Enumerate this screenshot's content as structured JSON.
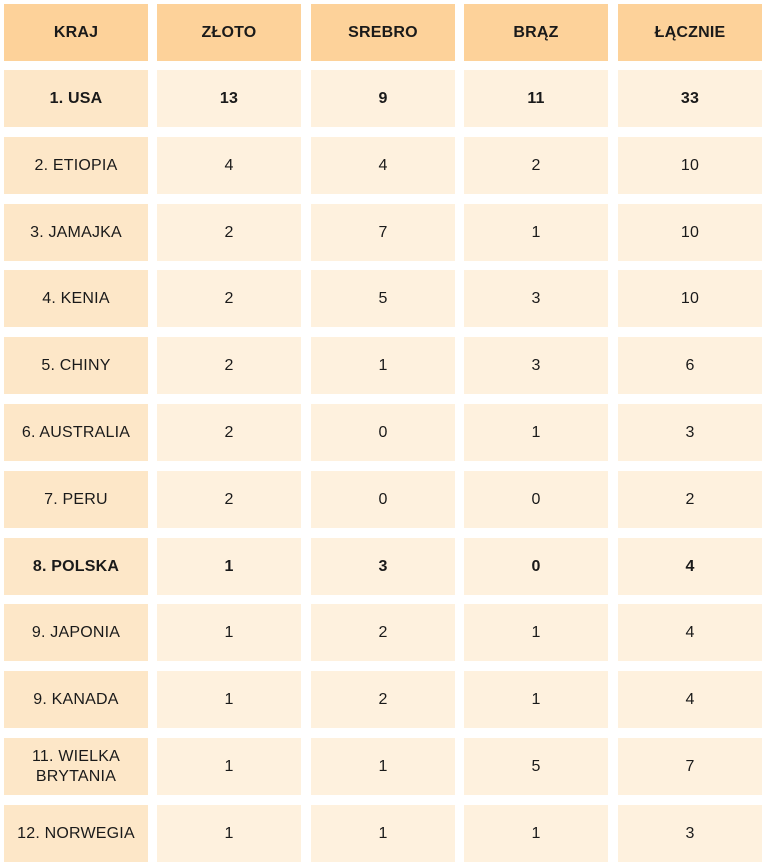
{
  "table": {
    "headers": [
      "KRAJ",
      "ZŁOTO",
      "SREBRO",
      "BRĄZ",
      "ŁĄCZNIE"
    ],
    "rows": [
      {
        "country": "1. USA",
        "gold": "13",
        "silver": "9",
        "bronze": "11",
        "total": "33",
        "bold": true
      },
      {
        "country": "2. ETIOPIA",
        "gold": "4",
        "silver": "4",
        "bronze": "2",
        "total": "10",
        "bold": false
      },
      {
        "country": "3. JAMAJKA",
        "gold": "2",
        "silver": "7",
        "bronze": "1",
        "total": "10",
        "bold": false
      },
      {
        "country": "4. KENIA",
        "gold": "2",
        "silver": "5",
        "bronze": "3",
        "total": "10",
        "bold": false
      },
      {
        "country": "5. CHINY",
        "gold": "2",
        "silver": "1",
        "bronze": "3",
        "total": "6",
        "bold": false
      },
      {
        "country": "6. AUSTRALIA",
        "gold": "2",
        "silver": "0",
        "bronze": "1",
        "total": "3",
        "bold": false
      },
      {
        "country": "7. PERU",
        "gold": "2",
        "silver": "0",
        "bronze": "0",
        "total": "2",
        "bold": false
      },
      {
        "country": "8. POLSKA",
        "gold": "1",
        "silver": "3",
        "bronze": "0",
        "total": "4",
        "bold": true
      },
      {
        "country": "9. JAPONIA",
        "gold": "1",
        "silver": "2",
        "bronze": "1",
        "total": "4",
        "bold": false
      },
      {
        "country": "9. KANADA",
        "gold": "1",
        "silver": "2",
        "bronze": "1",
        "total": "4",
        "bold": false
      },
      {
        "country": "11. WIELKA BRYTANIA",
        "gold": "1",
        "silver": "1",
        "bronze": "5",
        "total": "7",
        "bold": false
      },
      {
        "country": "12. NORWEGIA",
        "gold": "1",
        "silver": "1",
        "bronze": "1",
        "total": "3",
        "bold": false
      }
    ]
  },
  "colors": {
    "header_bg": "#fdd29a",
    "first_col_bg": "#fde7c8",
    "body_bg": "#fef1de",
    "text": "#1a1a1a"
  }
}
